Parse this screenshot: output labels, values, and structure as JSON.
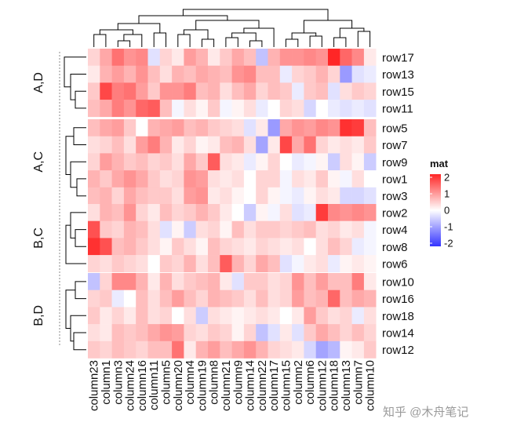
{
  "chart_data": {
    "type": "heatmap",
    "title": "",
    "columns": [
      "column23",
      "column1",
      "column3",
      "column24",
      "column16",
      "column11",
      "column5",
      "column20",
      "column4",
      "column19",
      "column8",
      "column21",
      "column9",
      "column14",
      "column22",
      "column17",
      "column15",
      "column2",
      "column6",
      "column12",
      "column18",
      "column13",
      "column7",
      "column10"
    ],
    "groups": [
      {
        "name": "A,D",
        "rows": [
          "row17",
          "row13",
          "row15",
          "row11"
        ]
      },
      {
        "name": "A,C",
        "rows": [
          "row5",
          "row7",
          "row9",
          "row1",
          "row3"
        ]
      },
      {
        "name": "B,C",
        "rows": [
          "row2",
          "row4",
          "row8",
          "row6"
        ]
      },
      {
        "name": "B,D",
        "rows": [
          "row10",
          "row16",
          "row18",
          "row14",
          "row12"
        ]
      }
    ],
    "values": {
      "row17": [
        0.4,
        0.8,
        1.3,
        1.0,
        1.1,
        -0.3,
        0.4,
        0.2,
        0.9,
        0.7,
        0.2,
        0.5,
        0.8,
        0.6,
        -0.6,
        0.7,
        1.0,
        1.0,
        1.1,
        1.0,
        2.0,
        1.4,
        1.1,
        0.2
      ],
      "row13": [
        0.2,
        0.7,
        0.9,
        0.7,
        1.0,
        0.6,
        0.3,
        0.7,
        0.6,
        0.8,
        0.7,
        0.6,
        1.0,
        1.1,
        0.6,
        0.6,
        -0.2,
        0.4,
        0.5,
        0.7,
        0.4,
        -1.0,
        -0.3,
        -0.2
      ],
      "row15": [
        0.5,
        1.7,
        1.2,
        1.3,
        0.9,
        0.5,
        1.0,
        1.0,
        1.2,
        0.6,
        0.7,
        0.3,
        0.6,
        0.8,
        0.4,
        0.6,
        0.5,
        -0.2,
        0.5,
        0.6,
        -0.3,
        0.3,
        0.5,
        0.4
      ],
      "row11": [
        0.6,
        0.8,
        1.2,
        1.0,
        1.4,
        1.5,
        0.6,
        -0.1,
        0.3,
        0.1,
        0.5,
        -0.1,
        0.1,
        0.3,
        -0.2,
        0.0,
        0.4,
        0.3,
        -0.4,
        0.0,
        -0.2,
        -0.3,
        -0.2,
        -0.3
      ],
      "row5": [
        0.6,
        0.8,
        0.9,
        0.5,
        0.0,
        0.7,
        0.8,
        0.9,
        0.6,
        0.7,
        0.5,
        0.4,
        0.3,
        -0.3,
        0.2,
        -1.0,
        0.8,
        1.0,
        0.9,
        1.1,
        1.0,
        1.9,
        1.8,
        0.6
      ],
      "row7": [
        0.3,
        0.4,
        0.6,
        0.3,
        0.9,
        1.2,
        0.7,
        0.2,
        0.4,
        0.1,
        0.2,
        0.6,
        0.7,
        0.3,
        -0.9,
        0.2,
        1.7,
        0.8,
        1.3,
        0.4,
        0.2,
        0.3,
        0.2,
        0.5
      ],
      "row9": [
        0.4,
        0.9,
        0.7,
        0.5,
        0.6,
        0.4,
        0.5,
        0.3,
        0.8,
        0.5,
        1.5,
        0.3,
        0.2,
        -0.2,
        0.1,
        0.4,
        0.0,
        -0.2,
        -0.1,
        0.1,
        -0.5,
        0.3,
        0.1,
        -0.5
      ],
      "row1": [
        0.7,
        0.5,
        0.8,
        1.0,
        0.8,
        0.5,
        0.3,
        0.4,
        1.0,
        0.9,
        0.3,
        0.2,
        0.3,
        0.0,
        0.4,
        0.4,
        -0.1,
        0.3,
        0.2,
        0.5,
        0.1,
        -0.1,
        0.3,
        0.0
      ],
      "row3": [
        0.6,
        0.7,
        0.4,
        0.8,
        0.6,
        0.5,
        0.5,
        0.3,
        0.9,
        1.0,
        0.2,
        0.3,
        0.1,
        0.0,
        0.4,
        0.1,
        -0.1,
        -0.2,
        0.1,
        0.3,
        0.2,
        -0.4,
        -0.4,
        -0.3
      ],
      "row2": [
        0.3,
        0.7,
        0.6,
        1.0,
        0.4,
        0.2,
        0.6,
        0.4,
        0.5,
        0.7,
        0.5,
        0.2,
        0.0,
        -0.5,
        0.1,
        -0.1,
        0.3,
        -0.3,
        -0.2,
        1.8,
        1.1,
        1.0,
        1.1,
        1.0
      ],
      "row4": [
        1.6,
        0.5,
        0.4,
        0.7,
        0.6,
        0.3,
        -0.3,
        0.1,
        -0.5,
        0.3,
        0.4,
        0.1,
        0.6,
        0.3,
        0.5,
        0.5,
        0.4,
        0.5,
        0.6,
        0.3,
        0.4,
        0.2,
        0.3,
        -0.1
      ],
      "row8": [
        1.9,
        1.6,
        0.6,
        0.7,
        0.5,
        0.3,
        0.1,
        0.5,
        0.3,
        0.1,
        0.6,
        0.4,
        0.3,
        0.2,
        0.4,
        0.3,
        0.2,
        0.3,
        0.0,
        0.3,
        0.6,
        0.4,
        -0.2,
        -0.1
      ],
      "row6": [
        0.4,
        0.3,
        0.5,
        0.4,
        0.3,
        0.0,
        0.5,
        0.4,
        0.7,
        0.3,
        0.6,
        1.5,
        0.7,
        0.4,
        0.8,
        0.6,
        -0.3,
        -0.1,
        0.2,
        0.3,
        -0.2,
        0.1,
        0.2,
        0.1
      ],
      "row10": [
        -0.6,
        0.4,
        1.1,
        1.1,
        0.7,
        0.2,
        0.7,
        0.3,
        0.5,
        0.6,
        0.7,
        0.2,
        -0.3,
        0.5,
        0.5,
        0.3,
        0.4,
        1.0,
        0.6,
        0.9,
        0.6,
        0.6,
        1.2,
        0.2
      ],
      "row16": [
        0.4,
        0.5,
        -0.2,
        0.0,
        0.6,
        0.3,
        0.6,
        0.9,
        0.6,
        0.4,
        0.7,
        0.6,
        0.5,
        0.3,
        0.6,
        0.3,
        0.4,
        0.9,
        0.6,
        0.7,
        1.4,
        0.6,
        0.8,
        0.7
      ],
      "row18": [
        0.5,
        0.2,
        0.4,
        0.2,
        0.6,
        0.3,
        0.4,
        0.0,
        0.3,
        -0.5,
        0.3,
        0.2,
        0.1,
        0.2,
        0.3,
        0.2,
        0.0,
        0.2,
        0.9,
        0.5,
        0.3,
        0.4,
        -0.2,
        0.3
      ],
      "row14": [
        0.3,
        0.2,
        0.6,
        0.5,
        0.6,
        0.8,
        1.0,
        0.9,
        0.4,
        0.3,
        0.5,
        0.4,
        0.1,
        0.4,
        -0.6,
        -0.3,
        0.2,
        -0.3,
        0.5,
        0.8,
        0.6,
        0.4,
        0.6,
        0.4
      ],
      "row12": [
        0.5,
        0.4,
        0.6,
        0.5,
        0.4,
        0.6,
        0.6,
        1.3,
        0.2,
        0.7,
        0.9,
        0.6,
        0.8,
        1.0,
        0.7,
        0.4,
        0.3,
        0.2,
        -0.4,
        -0.9,
        -0.7,
        0.1,
        0.2,
        0.5
      ]
    },
    "legend": {
      "title": "mat",
      "ticks": [
        2,
        1,
        0,
        -1,
        -2
      ],
      "tick_labels": [
        "2",
        "1",
        "0",
        "-1",
        "-2"
      ],
      "colors": {
        "high": "#ff2626",
        "mid": "#ffffff",
        "low": "#3434ff"
      },
      "position": "right"
    }
  },
  "watermark": "知乎 @木舟笔记"
}
